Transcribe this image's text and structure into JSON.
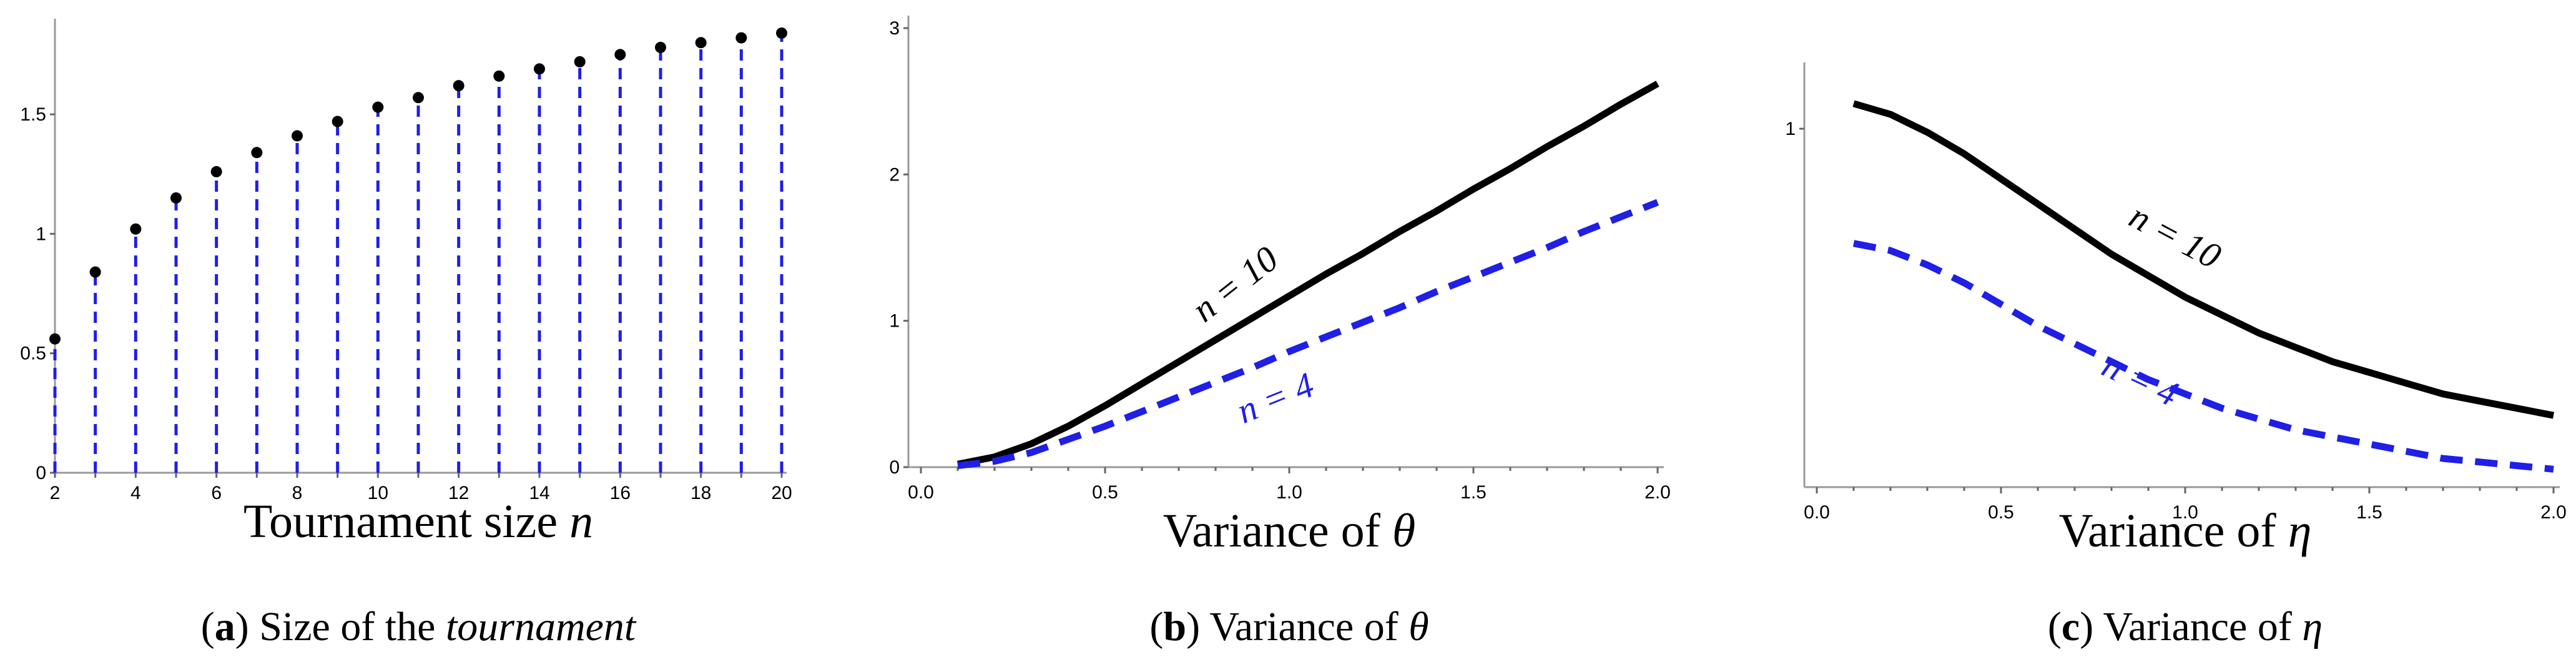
{
  "chart_data": [
    {
      "type": "stem",
      "x": [
        2,
        3,
        4,
        5,
        6,
        7,
        8,
        9,
        10,
        11,
        12,
        13,
        14,
        15,
        16,
        17,
        18,
        19,
        20
      ],
      "y": [
        0.56,
        0.84,
        1.02,
        1.15,
        1.26,
        1.34,
        1.41,
        1.47,
        1.53,
        1.57,
        1.62,
        1.66,
        1.69,
        1.72,
        1.75,
        1.78,
        1.8,
        1.82,
        1.84
      ],
      "xlim": [
        2,
        20
      ],
      "ylim": [
        0,
        1.9
      ],
      "xticks": [
        "2",
        "4",
        "6",
        "8",
        "10",
        "12",
        "14",
        "16",
        "18",
        "20"
      ],
      "yticks": [
        "0",
        "0.5",
        "1",
        "1.5"
      ],
      "xlabel": "Tournament size n",
      "caption_letter": "a",
      "caption_text": "Size of the tournament",
      "colors": {
        "stem": "#1f1fe6",
        "marker": "#000000"
      }
    },
    {
      "type": "line",
      "x": [
        0.1,
        0.2,
        0.3,
        0.4,
        0.5,
        0.6,
        0.7,
        0.8,
        0.9,
        1.0,
        1.1,
        1.2,
        1.3,
        1.4,
        1.5,
        1.6,
        1.7,
        1.8,
        1.9,
        2.0
      ],
      "series": [
        {
          "name": "n = 10",
          "values": [
            0.02,
            0.07,
            0.16,
            0.28,
            0.42,
            0.57,
            0.72,
            0.87,
            1.02,
            1.17,
            1.32,
            1.46,
            1.61,
            1.75,
            1.9,
            2.04,
            2.19,
            2.33,
            2.48,
            2.62
          ],
          "color": "#000000",
          "dash": "solid"
        },
        {
          "name": "n = 4",
          "values": [
            0.01,
            0.04,
            0.1,
            0.19,
            0.28,
            0.38,
            0.48,
            0.58,
            0.68,
            0.79,
            0.89,
            0.99,
            1.09,
            1.2,
            1.3,
            1.4,
            1.5,
            1.61,
            1.71,
            1.81
          ],
          "color": "#1f1fe6",
          "dash": "dashed"
        }
      ],
      "xlim": [
        0,
        2.0
      ],
      "ylim": [
        0,
        3
      ],
      "xticks": [
        "0.0",
        "0.5",
        "1.0",
        "1.5",
        "2.0"
      ],
      "yticks": [
        "0",
        "1",
        "2",
        "3"
      ],
      "xlabel": "Variance of θ",
      "caption_letter": "b",
      "caption_text": "Variance of θ"
    },
    {
      "type": "line",
      "x": [
        0.1,
        0.2,
        0.3,
        0.4,
        0.5,
        0.6,
        0.7,
        0.8,
        0.9,
        1.0,
        1.1,
        1.2,
        1.3,
        1.4,
        1.5,
        1.6,
        1.7,
        1.8,
        1.9,
        2.0
      ],
      "series": [
        {
          "name": "n = 10",
          "values": [
            1.07,
            1.04,
            0.99,
            0.93,
            0.86,
            0.79,
            0.72,
            0.65,
            0.59,
            0.53,
            0.48,
            0.43,
            0.39,
            0.35,
            0.32,
            0.29,
            0.26,
            0.24,
            0.22,
            0.2
          ],
          "color": "#000000",
          "dash": "solid"
        },
        {
          "name": "n = 4",
          "values": [
            0.68,
            0.66,
            0.62,
            0.57,
            0.51,
            0.45,
            0.4,
            0.35,
            0.3,
            0.26,
            0.22,
            0.19,
            0.16,
            0.14,
            0.12,
            0.1,
            0.08,
            0.07,
            0.06,
            0.05
          ],
          "color": "#1f1fe6",
          "dash": "dashed"
        }
      ],
      "xlim": [
        0,
        2.0
      ],
      "ylim": [
        0,
        1.15
      ],
      "xticks": [
        "0.0",
        "0.5",
        "1.0",
        "1.5",
        "2.0"
      ],
      "yticks": [
        "1"
      ],
      "xlabel": "Variance of η",
      "caption_letter": "c",
      "caption_text": "Variance of η"
    }
  ]
}
